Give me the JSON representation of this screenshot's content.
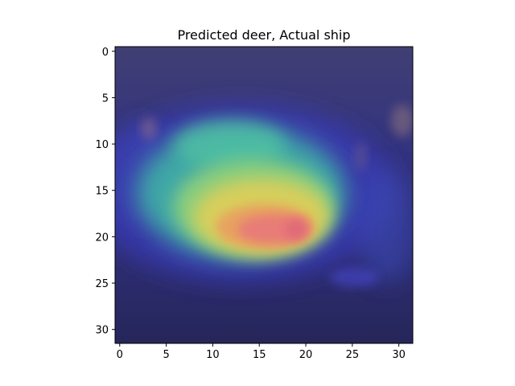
{
  "title": "Predicted deer, Actual ship",
  "image": {
    "rows": 32,
    "cols": 32,
    "description_free": true
  },
  "axes": {
    "x_ticks": [
      "0",
      "5",
      "10",
      "15",
      "20",
      "25",
      "30"
    ],
    "y_ticks": [
      "0",
      "5",
      "10",
      "15",
      "20",
      "25",
      "30"
    ],
    "x_tick_values": [
      0,
      5,
      10,
      15,
      20,
      25,
      30
    ],
    "y_tick_values": [
      0,
      5,
      10,
      15,
      20,
      25,
      30
    ],
    "xlim": [
      -0.5,
      31.5
    ],
    "ylim": [
      31.5,
      -0.5
    ]
  },
  "colors": {
    "background_dark": "#2b2a63",
    "background_blue": "#33339a",
    "mid_cyan": "#3fb3a6",
    "mid_green": "#7dcf7a",
    "mid_yellow": "#d8cf5a",
    "hot_red": "#e88070",
    "frame": "#000000"
  }
}
